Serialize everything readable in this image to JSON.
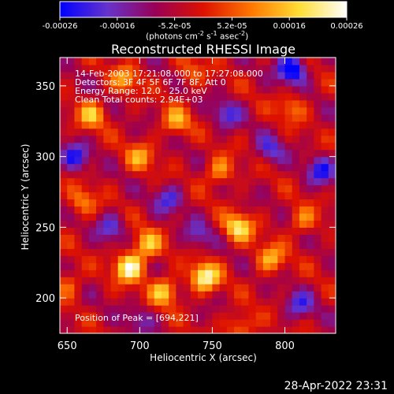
{
  "chart_data": {
    "type": "heatmap",
    "title": "Reconstructed RHESSI Image",
    "xlabel": "Heliocentric X (arcsec)",
    "ylabel": "Heliocentric Y (arcsec)",
    "xlim": [
      645,
      835
    ],
    "ylim": [
      175,
      370
    ],
    "xticks": [
      650,
      700,
      750,
      800
    ],
    "yticks": [
      200,
      250,
      300,
      350
    ],
    "colorbar": {
      "range": [
        -0.00026,
        0.00026
      ],
      "tick_labels": [
        "-0.00026",
        "-0.00016",
        "-5.2e-05",
        "5.2e-05",
        "0.00016",
        "0.00026"
      ],
      "label_text": "(photons cm",
      "label_exp1": "-2",
      "label_mid": " s",
      "label_exp2": "-1",
      "label_mid2": " asec",
      "label_exp3": "-2",
      "label_end": ")",
      "colors": [
        "#0000ff",
        "#6633cc",
        "#990055",
        "#dd1100",
        "#ff7700",
        "#ffdd33",
        "#ffffff"
      ]
    },
    "hotspots": [
      {
        "x": 693,
        "y": 222,
        "v": 1.0
      },
      {
        "x": 745,
        "y": 215,
        "v": 0.95
      },
      {
        "x": 768,
        "y": 250,
        "v": 0.8
      },
      {
        "x": 717,
        "y": 205,
        "v": 0.7
      },
      {
        "x": 705,
        "y": 238,
        "v": 0.65
      },
      {
        "x": 790,
        "y": 228,
        "v": 0.6
      },
      {
        "x": 667,
        "y": 330,
        "v": 0.6
      },
      {
        "x": 755,
        "y": 290,
        "v": 0.55
      },
      {
        "x": 725,
        "y": 325,
        "v": 0.55
      },
      {
        "x": 700,
        "y": 300,
        "v": 0.5
      },
      {
        "x": 690,
        "y": 355,
        "v": 0.5
      },
      {
        "x": 812,
        "y": 255,
        "v": 0.45
      },
      {
        "x": 660,
        "y": 268,
        "v": 0.45
      },
      {
        "x": 805,
        "y": 335,
        "v": 0.4
      },
      {
        "x": 650,
        "y": 210,
        "v": 0.4
      },
      {
        "x": 770,
        "y": 180,
        "v": 0.5
      },
      {
        "x": 735,
        "y": 360,
        "v": 0.35
      }
    ],
    "coldspots": [
      {
        "x": 805,
        "y": 362,
        "v": -0.9
      },
      {
        "x": 655,
        "y": 300,
        "v": -0.6
      },
      {
        "x": 760,
        "y": 330,
        "v": -0.5
      },
      {
        "x": 720,
        "y": 270,
        "v": -0.5
      },
      {
        "x": 825,
        "y": 290,
        "v": -0.6
      },
      {
        "x": 810,
        "y": 195,
        "v": -0.5
      },
      {
        "x": 680,
        "y": 250,
        "v": -0.45
      },
      {
        "x": 740,
        "y": 245,
        "v": -0.4
      },
      {
        "x": 790,
        "y": 305,
        "v": -0.45
      },
      {
        "x": 700,
        "y": 185,
        "v": -0.3
      }
    ],
    "overlay": [
      "14-Feb-2003 17:21:08.000 to 17:27:08.000",
      "Detectors: 3F 4F 5F 6F 7F 8F, Att 0",
      "Energy Range: 12.0 - 25.0 keV",
      "Clean     Total counts: 2.94E+03"
    ],
    "peak_text": "Position of Peak = [694,221]"
  },
  "footer_timestamp": "28-Apr-2022 23:31"
}
